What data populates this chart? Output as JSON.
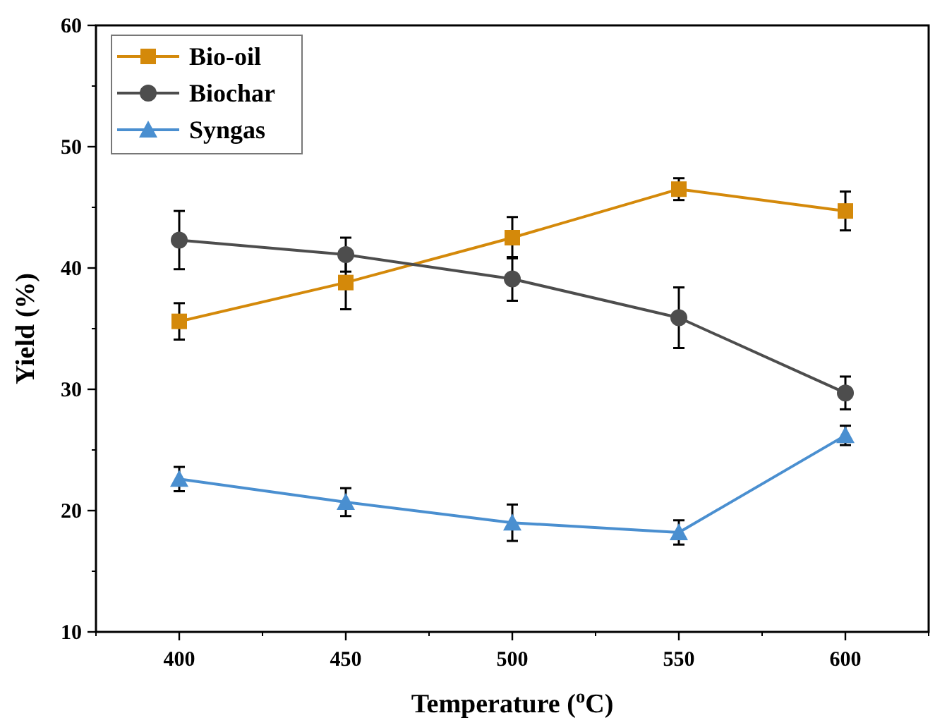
{
  "chart_data": {
    "type": "line",
    "xlabel": "Temperature ($^{o}$C)",
    "ylabel": "Yield (%)",
    "x": [
      400,
      450,
      500,
      550,
      600
    ],
    "xlim": [
      375,
      625
    ],
    "xticks": [
      400,
      450,
      500,
      550,
      600
    ],
    "ylim": [
      10,
      60
    ],
    "yticks": [
      10,
      20,
      30,
      40,
      50,
      60
    ],
    "legend": "top left",
    "grid": false,
    "series": [
      {
        "name": "Bio-oil",
        "color": "#d4890a",
        "marker": "square",
        "values": [
          35.6,
          38.8,
          42.5,
          46.5,
          44.7
        ],
        "errors": [
          1.5,
          2.2,
          1.7,
          0.9,
          1.6
        ]
      },
      {
        "name": "Biochar",
        "color": "#4d4d4d",
        "marker": "circle",
        "values": [
          42.3,
          41.1,
          39.1,
          35.9,
          29.7
        ],
        "errors": [
          2.4,
          1.4,
          1.8,
          2.5,
          1.35
        ]
      },
      {
        "name": "Syngas",
        "color": "#4a8fd0",
        "marker": "triangle",
        "values": [
          22.6,
          20.7,
          19.0,
          18.2,
          26.2
        ],
        "errors": [
          1.0,
          1.15,
          1.5,
          1.0,
          0.8
        ]
      }
    ]
  }
}
